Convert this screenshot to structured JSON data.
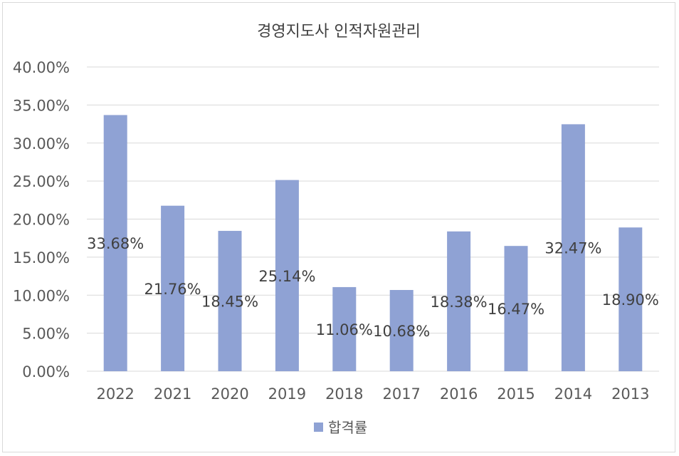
{
  "chart_data": {
    "type": "bar",
    "title": "경영지도사 인적자원관리",
    "categories": [
      "2022",
      "2021",
      "2020",
      "2019",
      "2018",
      "2017",
      "2016",
      "2015",
      "2014",
      "2013"
    ],
    "series": [
      {
        "name": "합격률",
        "values": [
          33.68,
          21.76,
          18.45,
          25.14,
          11.06,
          10.68,
          18.38,
          16.47,
          32.47,
          18.9
        ],
        "labels": [
          "33.68%",
          "21.76%",
          "18.45%",
          "25.14%",
          "11.06%",
          "10.68%",
          "18.38%",
          "16.47%",
          "32.47%",
          "18.90%"
        ],
        "color": "#8fa2d4"
      }
    ],
    "ylim": [
      0,
      40
    ],
    "yticks": [
      "0.00%",
      "5.00%",
      "10.00%",
      "15.00%",
      "20.00%",
      "25.00%",
      "30.00%",
      "35.00%",
      "40.00%"
    ],
    "grid": true,
    "legend": "bottom",
    "colors": {
      "grid": "#d9d9d9",
      "text": "#595959",
      "bar": "#8fa2d4"
    }
  }
}
